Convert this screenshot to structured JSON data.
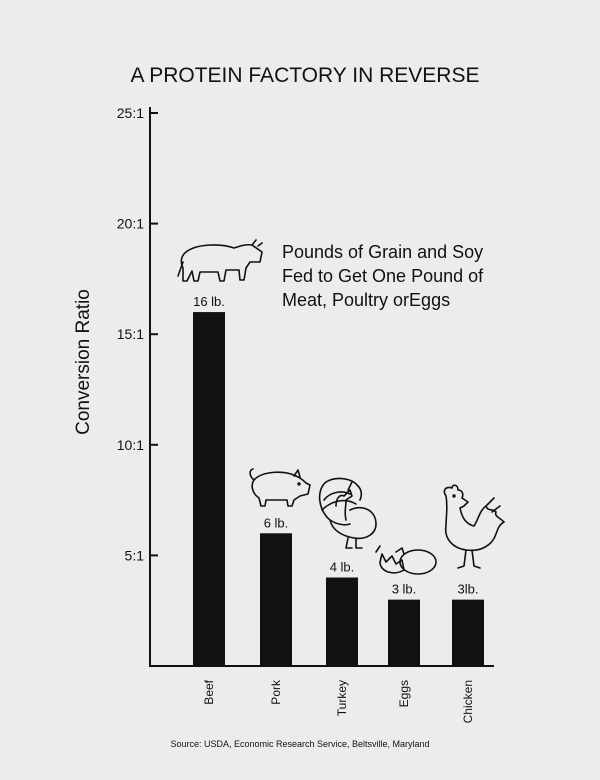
{
  "chart_data": {
    "type": "bar",
    "title": "A PROTEIN FACTORY IN REVERSE",
    "ylabel": "Conversion Ratio",
    "xlabel": "",
    "ylim": [
      0,
      25
    ],
    "yticks": [
      {
        "value": 5,
        "label": "5:1"
      },
      {
        "value": 10,
        "label": "10:1"
      },
      {
        "value": 15,
        "label": "15:1"
      },
      {
        "value": 20,
        "label": "20:1"
      },
      {
        "value": 25,
        "label": "25:1"
      }
    ],
    "categories": [
      "Beef",
      "Pork",
      "Turkey",
      "Eggs",
      "Chicken"
    ],
    "values": [
      16,
      6,
      4,
      3,
      3
    ],
    "data_labels": [
      "16 lb.",
      "6 lb.",
      "4 lb.",
      "3 lb.",
      "3lb."
    ],
    "annotation": [
      "Pounds of Grain and Soy",
      "Fed to Get One Pound of",
      "Meat, Poultry orEggs"
    ],
    "source": "Source: USDA, Economic Research  Service, Beltsville, Maryland",
    "grid": false,
    "legend": "none",
    "bar_color": "#111111",
    "icons": [
      "cow-icon",
      "pig-icon",
      "turkey-icon",
      "eggs-icon",
      "rooster-icon"
    ]
  }
}
